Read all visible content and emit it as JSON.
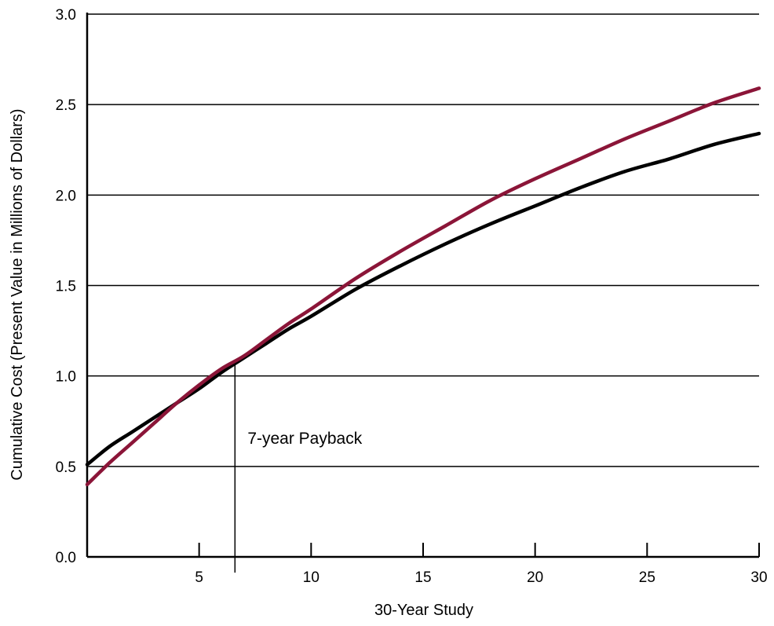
{
  "chart_data": {
    "type": "line",
    "title": "",
    "xlabel": "30-Year Study",
    "ylabel": "Cumulative Cost (Present Value in Millions of Dollars)",
    "xlim": [
      0,
      30
    ],
    "ylim": [
      0,
      3.0
    ],
    "x_ticks": [
      5,
      10,
      15,
      20,
      25,
      30
    ],
    "x_tick_labels": [
      "5",
      "10",
      "15",
      "20",
      "25",
      "30"
    ],
    "y_ticks": [
      0,
      0.5,
      1.0,
      1.5,
      2.0,
      2.5,
      3.0
    ],
    "y_tick_labels": [
      "0.0",
      "0.5",
      "1.0",
      "1.5",
      "2.0",
      "2.5",
      "3.0"
    ],
    "grid": "horizontal",
    "legend": "none",
    "series": [
      {
        "color": "#000000",
        "x": [
          0,
          1,
          2,
          3,
          4,
          5,
          6,
          7,
          8,
          9,
          10,
          12,
          14,
          16,
          18,
          20,
          22,
          24,
          26,
          28,
          30
        ],
        "values": [
          0.51,
          0.61,
          0.69,
          0.77,
          0.85,
          0.93,
          1.02,
          1.1,
          1.18,
          1.26,
          1.33,
          1.48,
          1.61,
          1.73,
          1.84,
          1.94,
          2.04,
          2.13,
          2.2,
          2.28,
          2.34
        ]
      },
      {
        "color": "#8b1538",
        "x": [
          0,
          1,
          2,
          3,
          4,
          5,
          6,
          7,
          8,
          9,
          10,
          12,
          14,
          16,
          18,
          20,
          22,
          24,
          26,
          28,
          30
        ],
        "values": [
          0.4,
          0.52,
          0.63,
          0.74,
          0.85,
          0.95,
          1.04,
          1.11,
          1.2,
          1.29,
          1.37,
          1.54,
          1.69,
          1.83,
          1.97,
          2.09,
          2.2,
          2.31,
          2.41,
          2.51,
          2.59
        ]
      }
    ],
    "annotations": [
      {
        "text": "7-year Payback",
        "x": 6.6
      }
    ]
  }
}
